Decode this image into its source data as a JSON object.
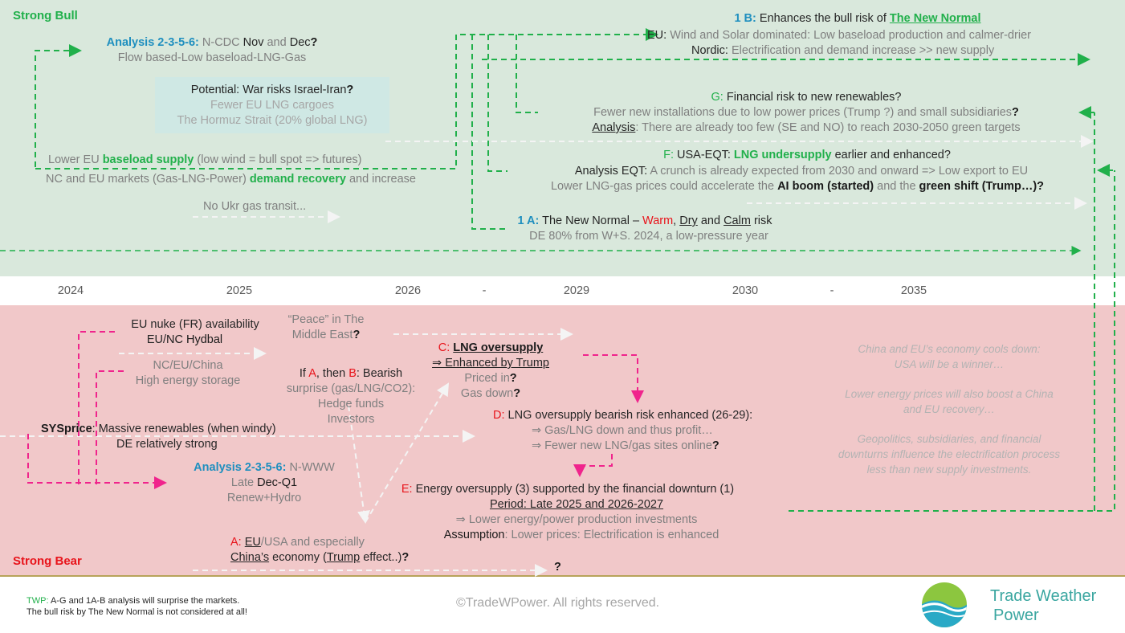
{
  "zones": {
    "bull": "Strong Bull",
    "bear": "Strong Bear"
  },
  "years": [
    "2024",
    "2025",
    "2026",
    "-",
    "2029",
    "2030",
    "-",
    "2035"
  ],
  "bull": {
    "b1": {
      "label": "1 B:",
      "text": "Enhances the bull risk of",
      "highlight": "The New Normal",
      "eu_label": "EU:",
      "eu_text": "Wind and Solar dominated: Low baseload production and calmer-drier",
      "nordic_label": "Nordic:",
      "nordic_text": "Electrification and demand increase >> new supply"
    },
    "analysis_top": {
      "label": "Analysis 2-3-5-6:",
      "pre": "N-CDC",
      "nov": "Nov",
      "and": "and",
      "dec": "Dec",
      "q": "?",
      "line2": "Flow based-Low baseload-LNG-Gas"
    },
    "potential": {
      "pre": "Potential: War risks Israel-Iran",
      "q": "?",
      "line2": "Fewer EU LNG cargoes",
      "line3": "The Hormuz Strait (20% global LNG)"
    },
    "g": {
      "label": "G:",
      "text": "Financial risk to new renewables?",
      "line2": "Fewer new installations due to low power prices (Trump ?) and small subsidiaries",
      "q": "?",
      "line3_label": "Analysis",
      "line3": ": There are already too few (SE and NO) to reach 2030-2050 green targets"
    },
    "lower_eu": {
      "pre": "Lower EU",
      "bold": "baseload supply",
      "post": "(low wind = bull spot =>  futures)",
      "line2_pre": "NC and EU markets (Gas-LNG-Power)",
      "line2_bold": "demand recovery",
      "line2_post": "and increase"
    },
    "f": {
      "label": "F:",
      "pre": "USA-EQT:",
      "bold": "LNG undersupply",
      "post": "earlier and enhanced?",
      "line2_label": "Analysis EQT:",
      "line2": "A crunch is already expected from 2030 and onward => Low export to EU",
      "line3_pre": "Lower LNG-gas prices could accelerate the",
      "line3_b1": "AI boom (started)",
      "line3_and": "and the",
      "line3_b2": "green shift (Trump…)",
      "line3_q": "?"
    },
    "no_ukr": "No Ukr gas transit...",
    "a1": {
      "label": "1 A:",
      "pre": "The New Normal –",
      "warm": "Warm",
      "comma": ",",
      "dry": "Dry",
      "and": "and",
      "calm": "Calm",
      "risk": "risk",
      "line2": "DE 80% from W+S. 2024, a low-pressure year"
    }
  },
  "bear": {
    "nuke": {
      "line1": "EU nuke (FR) availability",
      "line2_pre": "EU/",
      "line2_dk": "NC Hydbal"
    },
    "peace": {
      "line1": "“Peace” in The",
      "line2": "Middle East",
      "q": "?"
    },
    "storage": {
      "line1": "NC/EU/China",
      "line2": "High energy storage"
    },
    "if_a": {
      "pre": "If",
      "a": "A",
      "mid": ", then",
      "b": "B",
      "post": ": Bearish",
      "line2": "surprise (gas/LNG/CO2):",
      "line3": "Hedge funds",
      "line4": "Investors"
    },
    "c": {
      "label": "C:",
      "title": "LNG oversupply",
      "line2": "⇒ Enhanced by Trump",
      "line3": "Priced in",
      "q3": "?",
      "line4": "Gas down",
      "q4": "?"
    },
    "sysprice": {
      "label": "SYSprice",
      "text": ": Massive renewables (when windy)",
      "line2": "DE relatively strong"
    },
    "d": {
      "label": "D:",
      "text": "LNG oversupply bearish risk enhanced (26-29):",
      "line2": "⇒ Gas/LNG down and thus profit…",
      "line3": "⇒ Fewer new LNG/gas sites online",
      "q": "?"
    },
    "analysis_bottom": {
      "label": "Analysis 2-3-5-6:",
      "text": "N-WWW",
      "line2_pre": "Late",
      "line2_dk": "Dec-Q1",
      "line3": "Renew+Hydro"
    },
    "e": {
      "label": "E:",
      "text": "Energy oversupply (3) supported by the financial downturn (1)",
      "line2": "Period: Late 2025 and 2026-2027",
      "line3": "⇒ Lower energy/power production investments",
      "line4_label": "Assumption",
      "line4": ": Lower prices: Electrification is enhanced"
    },
    "a": {
      "label": "A:",
      "eu": "EU",
      "line1": "/USA and especially",
      "china": "China’s",
      "economy": "economy (",
      "trump": "Trump",
      "effect": "effect..)",
      "q": "?"
    },
    "q_mark": "?",
    "right_notes": [
      "China and EU’s economy cools down:",
      "USA will be a winner…",
      "Lower energy prices will also boost a China",
      "and EU recovery…",
      "Geopolitics, subsidiaries, and financial",
      "downturns influence the electrification process",
      "less than new supply investments."
    ]
  },
  "footer": {
    "twp_label": "TWP:",
    "twp_line1": "A-G and 1A-B analysis will surprise the markets.",
    "twp_line2": "The bull risk by The New Normal is not considered at all!",
    "copyright": "©TradeWPower. All rights reserved.",
    "brand_line1": "Trade Weather",
    "brand_line2": "Power"
  },
  "colors": {
    "bull_bg": "#d9e8dc",
    "bear_bg": "#f1c8c9",
    "green": "#21b04b",
    "blue": "#1f8fbf",
    "red": "#e8141b",
    "pink": "#f0248c",
    "brand": "#3aa6a0"
  }
}
